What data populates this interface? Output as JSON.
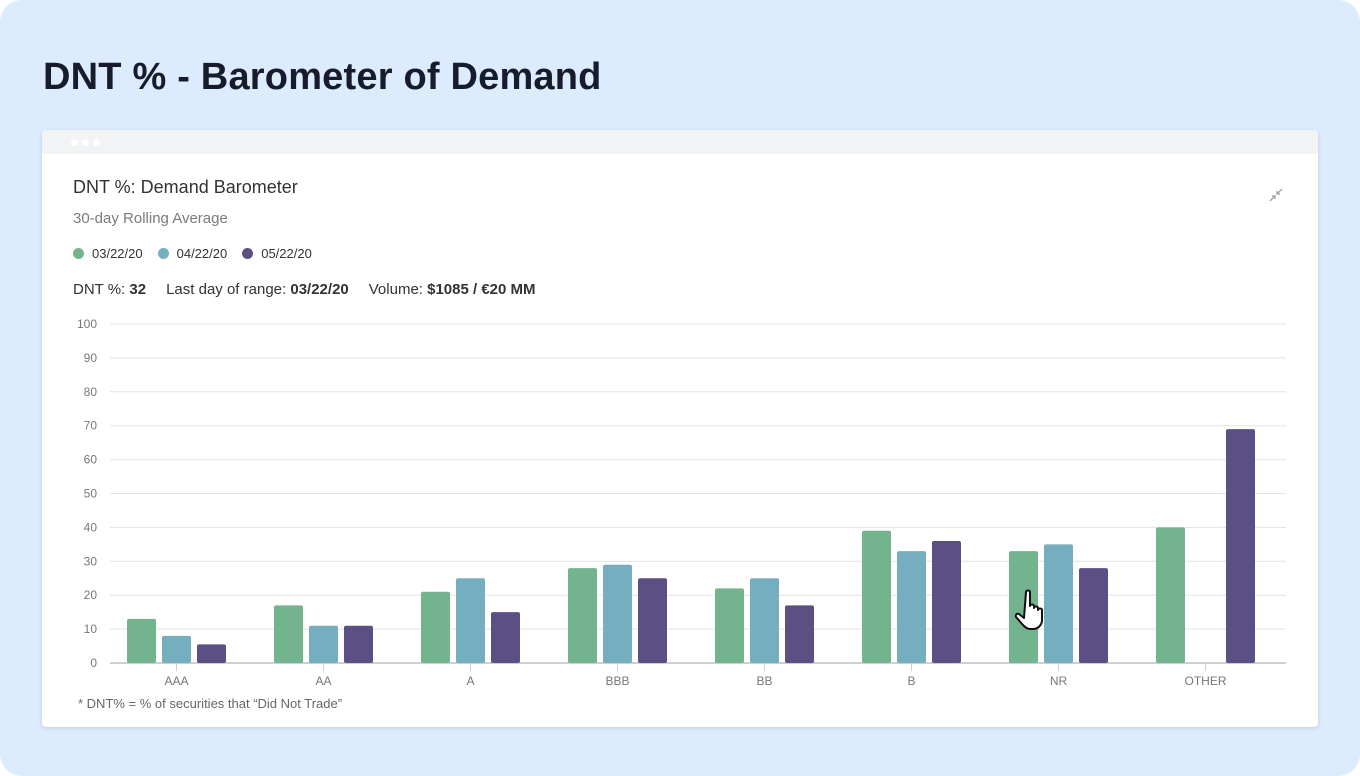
{
  "page": {
    "title": "DNT % - Barometer of Demand"
  },
  "card": {
    "title": "DNT %: Demand Barometer",
    "subtitle": "30-day Rolling Average",
    "collapse_icon": "collapse-arrows-icon",
    "stats": {
      "dnt_label": "DNT %:",
      "dnt_value": "32",
      "last_day_label": "Last day of range:",
      "last_day_value": "03/22/20",
      "volume_label": "Volume:",
      "volume_value": "$1085 / €20 MM"
    },
    "footnote": "* DNT% =  % of securities that “Did Not Trade”"
  },
  "colors": {
    "s1": "#73b48e",
    "s2": "#75aebe",
    "s3": "#5c4f84"
  },
  "chart_data": {
    "type": "bar",
    "title": "DNT %: Demand Barometer",
    "subtitle": "30-day Rolling Average",
    "categories": [
      "AAA",
      "AA",
      "A",
      "BBB",
      "BB",
      "B",
      "NR",
      "OTHER"
    ],
    "series": [
      {
        "name": "03/22/20",
        "color": "#73b48e",
        "values": [
          13,
          17,
          21,
          28,
          22,
          39,
          33,
          40
        ]
      },
      {
        "name": "04/22/20",
        "color": "#75aebe",
        "values": [
          8,
          11,
          25,
          29,
          25,
          33,
          35,
          null
        ]
      },
      {
        "name": "05/22/20",
        "color": "#5c4f84",
        "values": [
          5.5,
          11,
          15,
          25,
          17,
          36,
          28,
          69
        ]
      }
    ],
    "yticks": [
      "0",
      "10",
      "20",
      "30",
      "40",
      "50",
      "60",
      "70",
      "80",
      "90",
      "100"
    ],
    "ylim": [
      0,
      100
    ],
    "xlabel": "",
    "ylabel": "",
    "grid": true,
    "legend_position": "top-left"
  }
}
